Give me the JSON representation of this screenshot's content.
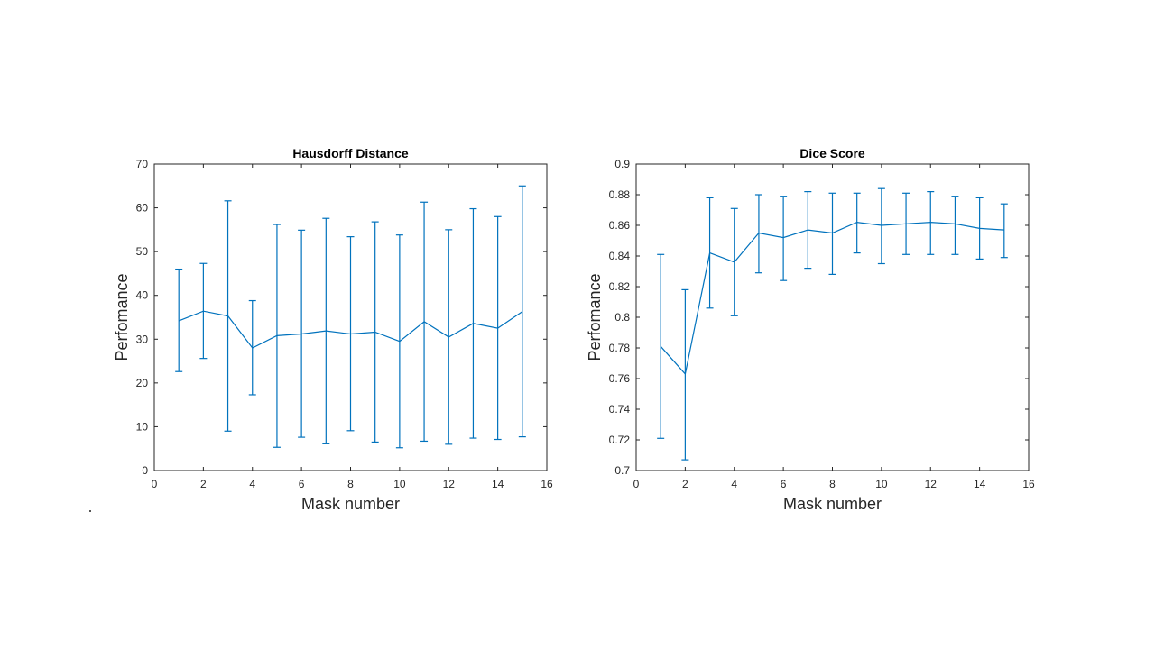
{
  "chart_data": [
    {
      "type": "line",
      "title": "Hausdorff Distance",
      "xlabel": "Mask number",
      "ylabel": "Perfomance",
      "xlim": [
        0,
        16
      ],
      "ylim": [
        0,
        70
      ],
      "xticks": [
        0,
        2,
        4,
        6,
        8,
        10,
        12,
        14,
        16
      ],
      "yticks": [
        0,
        10,
        20,
        30,
        40,
        50,
        60,
        70
      ],
      "x": [
        1,
        2,
        3,
        4,
        5,
        6,
        7,
        8,
        9,
        10,
        11,
        12,
        13,
        14,
        15
      ],
      "series": [
        {
          "values": [
            34.2,
            36.4,
            35.3,
            28.0,
            30.8,
            31.2,
            31.9,
            31.2,
            31.6,
            29.5,
            34.0,
            30.5,
            33.6,
            32.5,
            36.3
          ],
          "err_upper": [
            46.0,
            47.3,
            61.6,
            38.8,
            56.2,
            54.9,
            57.6,
            53.4,
            56.8,
            53.8,
            61.3,
            55.0,
            59.8,
            58.0,
            65.0
          ],
          "err_lower": [
            22.6,
            25.6,
            9.0,
            17.3,
            5.3,
            7.6,
            6.1,
            9.1,
            6.5,
            5.2,
            6.7,
            6.0,
            7.4,
            7.1,
            7.7
          ]
        }
      ],
      "grid": false,
      "color": "#0072BD"
    },
    {
      "type": "line",
      "title": "Dice Score",
      "xlabel": "Mask number",
      "ylabel": "Perfomance",
      "xlim": [
        0,
        16
      ],
      "ylim": [
        0.7,
        0.9
      ],
      "xticks": [
        0,
        2,
        4,
        6,
        8,
        10,
        12,
        14,
        16
      ],
      "yticks": [
        "0.7",
        "0.72",
        "0.74",
        "0.76",
        "0.78",
        "0.8",
        "0.82",
        "0.84",
        "0.86",
        "0.88",
        "0.9"
      ],
      "x": [
        1,
        2,
        3,
        4,
        5,
        6,
        7,
        8,
        9,
        10,
        11,
        12,
        13,
        14,
        15
      ],
      "series": [
        {
          "values": [
            0.781,
            0.763,
            0.842,
            0.836,
            0.855,
            0.852,
            0.857,
            0.855,
            0.862,
            0.86,
            0.861,
            0.862,
            0.861,
            0.858,
            0.857
          ],
          "err_upper": [
            0.841,
            0.818,
            0.878,
            0.871,
            0.88,
            0.879,
            0.882,
            0.881,
            0.881,
            0.884,
            0.881,
            0.882,
            0.879,
            0.878,
            0.874
          ],
          "err_lower": [
            0.721,
            0.707,
            0.806,
            0.801,
            0.829,
            0.824,
            0.832,
            0.828,
            0.842,
            0.835,
            0.841,
            0.841,
            0.841,
            0.838,
            0.839
          ]
        }
      ],
      "grid": false,
      "color": "#0072BD"
    }
  ]
}
